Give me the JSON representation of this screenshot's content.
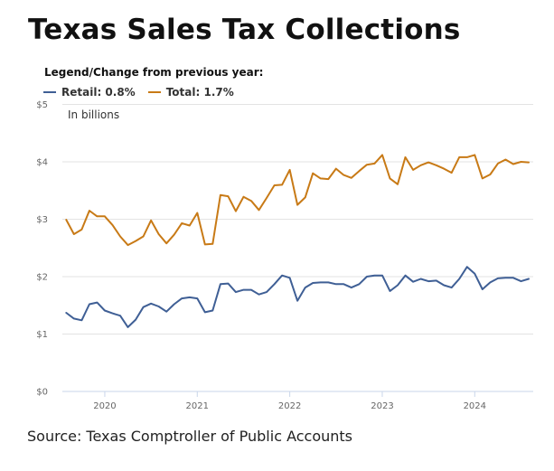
{
  "header": {
    "title": "Texas Sales Tax Collections"
  },
  "legend": {
    "title": "Legend/Change from previous year:",
    "items": [
      {
        "label": "Retail: 0.8%",
        "color": "#3f5f95"
      },
      {
        "label": "Total: 1.7%",
        "color": "#c87a16"
      }
    ]
  },
  "footer": {
    "source": "Source: Texas Comptroller of Public Accounts"
  },
  "chart_data": {
    "type": "line",
    "title": "Texas Sales Tax Collections",
    "units_note": "In billions",
    "xlabel": "",
    "ylabel": "",
    "x_start": "2019-08",
    "x_end": "2024-08",
    "x_frequency": "monthly",
    "x_ticks": [
      "2020",
      "2021",
      "2022",
      "2023",
      "2024"
    ],
    "y_ticks": [
      "$0",
      "$1",
      "$2",
      "$3",
      "$4",
      "$5"
    ],
    "ylim": [
      0,
      5
    ],
    "grid": true,
    "legend_position": "top-left",
    "series": [
      {
        "name": "Retail",
        "change_from_previous_year": "0.8%",
        "color": "#3f5f95",
        "values": [
          1.37,
          1.27,
          1.24,
          1.52,
          1.55,
          1.41,
          1.36,
          1.32,
          1.12,
          1.25,
          1.47,
          1.53,
          1.48,
          1.39,
          1.52,
          1.62,
          1.64,
          1.62,
          1.38,
          1.41,
          1.87,
          1.88,
          1.73,
          1.77,
          1.77,
          1.69,
          1.73,
          1.87,
          2.02,
          1.98,
          1.58,
          1.81,
          1.89,
          1.9,
          1.9,
          1.87,
          1.87,
          1.81,
          1.87,
          2.0,
          2.02,
          2.02,
          1.75,
          1.85,
          2.02,
          1.91,
          1.96,
          1.92,
          1.93,
          1.85,
          1.81,
          1.96,
          2.17,
          2.05,
          1.78,
          1.9,
          1.97,
          1.98,
          1.98,
          1.92,
          1.96
        ]
      },
      {
        "name": "Total",
        "change_from_previous_year": "1.7%",
        "color": "#c87a16",
        "values": [
          2.99,
          2.74,
          2.82,
          3.15,
          3.05,
          3.05,
          2.9,
          2.7,
          2.55,
          2.62,
          2.7,
          2.98,
          2.74,
          2.58,
          2.73,
          2.93,
          2.89,
          3.11,
          2.56,
          2.57,
          3.42,
          3.4,
          3.14,
          3.39,
          3.32,
          3.16,
          3.37,
          3.59,
          3.6,
          3.86,
          3.25,
          3.38,
          3.8,
          3.71,
          3.7,
          3.88,
          3.77,
          3.72,
          3.84,
          3.95,
          3.97,
          4.12,
          3.71,
          3.61,
          4.08,
          3.86,
          3.94,
          3.99,
          3.94,
          3.88,
          3.81,
          4.08,
          4.08,
          4.12,
          3.71,
          3.78,
          3.97,
          4.04,
          3.96,
          4.0,
          3.99
        ]
      }
    ]
  }
}
